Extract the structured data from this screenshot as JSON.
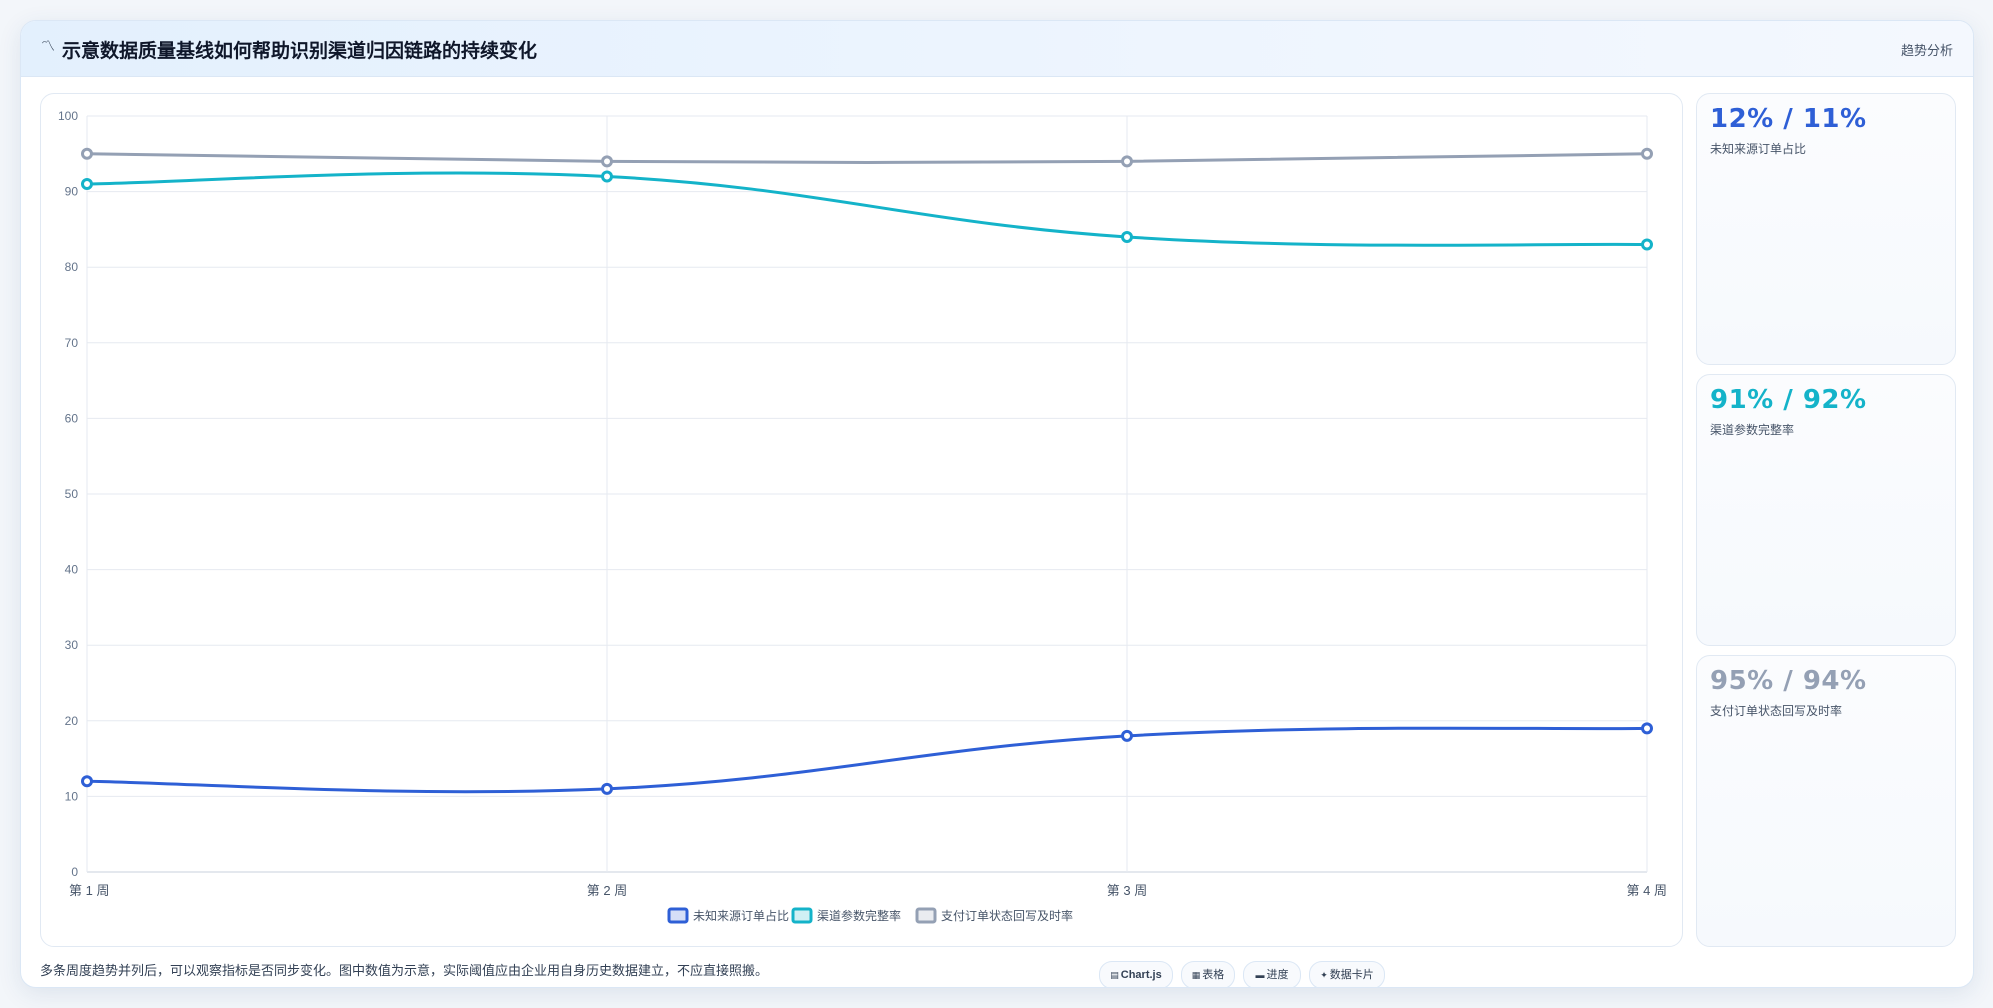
{
  "header": {
    "icon": "trend-icon",
    "title": "示意数据质量基线如何帮助识别渠道归因链路的持续变化",
    "tag": "趋势分析"
  },
  "chart_data": {
    "type": "line",
    "categories": [
      "第 1 周",
      "第 2 周",
      "第 3 周",
      "第 4 周"
    ],
    "series": [
      {
        "name": "未知来源订单占比",
        "values": [
          12,
          11,
          18,
          19
        ],
        "color": "#2e5fd6"
      },
      {
        "name": "渠道参数完整率",
        "values": [
          91,
          92,
          84,
          83
        ],
        "color": "#14b3c9"
      },
      {
        "name": "支付订单状态回写及时率",
        "values": [
          95,
          94,
          94,
          95
        ],
        "color": "#94a0b4"
      }
    ],
    "ylim": [
      0,
      100
    ],
    "yticks": [
      0,
      10,
      20,
      30,
      40,
      50,
      60,
      70,
      80,
      90,
      100
    ],
    "grid": true,
    "legend": "bottom-center"
  },
  "stats": [
    {
      "value": "12% / 11%",
      "label": "未知来源订单占比",
      "color": "#2e5fd6"
    },
    {
      "value": "91% / 92%",
      "label": "渠道参数完整率",
      "color": "#14b3c9"
    },
    {
      "value": "95% / 94%",
      "label": "支付订单状态回写及时率",
      "color": "#94a0b4"
    }
  ],
  "footer": {
    "note": "多条周度趋势并列后，可以观察指标是否同步变化。图中数值为示意，实际阈值应由企业用自身历史数据建立，不应直接照搬。"
  },
  "chips": [
    {
      "icon": "chart-icon",
      "label": "Chart.js"
    },
    {
      "icon": "table-icon",
      "label": "表格"
    },
    {
      "icon": "progress-icon",
      "label": "进度"
    },
    {
      "icon": "data-card-icon",
      "label": "数据卡片"
    }
  ]
}
